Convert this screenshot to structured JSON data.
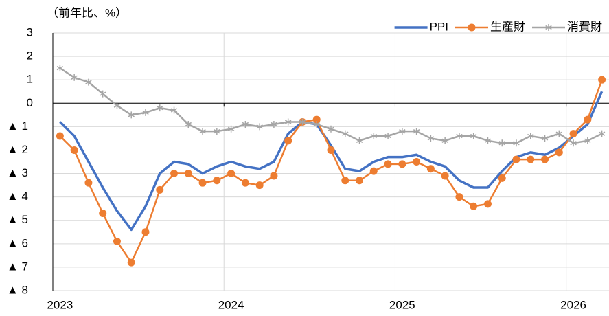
{
  "chart_data": {
    "type": "line",
    "y_axis_label": "（前年比、%）",
    "categories": [
      "2023",
      null,
      null,
      null,
      null,
      null,
      null,
      null,
      null,
      null,
      null,
      null,
      "2024",
      null,
      null,
      null,
      null,
      null,
      null,
      null,
      null,
      null,
      null,
      null,
      "2025",
      null,
      null,
      null,
      null,
      null,
      null,
      null,
      null,
      null,
      null,
      null,
      "2026",
      null,
      null
    ],
    "series": [
      {
        "name": "PPI",
        "color": "#4472c4",
        "marker": "none",
        "values": [
          -0.8,
          -1.4,
          -2.5,
          -3.6,
          -4.6,
          -5.4,
          -4.4,
          -3.0,
          -2.5,
          -2.6,
          -3.0,
          -2.7,
          -2.5,
          -2.7,
          -2.8,
          -2.5,
          -1.3,
          -0.8,
          -0.9,
          -1.8,
          -2.8,
          -2.9,
          -2.5,
          -2.3,
          -2.3,
          -2.2,
          -2.5,
          -2.7,
          -3.3,
          -3.6,
          -3.6,
          -2.9,
          -2.3,
          -2.1,
          -2.2,
          -1.9,
          -1.4,
          -0.9,
          0.5
        ]
      },
      {
        "name": "生産財",
        "color": "#ed7d31",
        "marker": "circle",
        "values": [
          -1.4,
          -2.0,
          -3.4,
          -4.7,
          -5.9,
          -6.8,
          -5.5,
          -3.7,
          -3.0,
          -3.0,
          -3.4,
          -3.3,
          -3.0,
          -3.4,
          -3.5,
          -3.1,
          -1.6,
          -0.8,
          -0.7,
          -2.0,
          -3.3,
          -3.3,
          -2.9,
          -2.6,
          -2.6,
          -2.5,
          -2.8,
          -3.1,
          -4.0,
          -4.4,
          -4.3,
          -3.2,
          -2.4,
          -2.4,
          -2.4,
          -2.1,
          -1.3,
          -0.7,
          1.0
        ]
      },
      {
        "name": "消費財",
        "color": "#a5a5a5",
        "marker": "star",
        "values": [
          1.5,
          1.1,
          0.9,
          0.4,
          -0.1,
          -0.5,
          -0.4,
          -0.2,
          -0.3,
          -0.9,
          -1.2,
          -1.2,
          -1.1,
          -0.9,
          -1.0,
          -0.9,
          -0.8,
          -0.8,
          -0.9,
          -1.1,
          -1.3,
          -1.6,
          -1.4,
          -1.4,
          -1.2,
          -1.2,
          -1.5,
          -1.6,
          -1.4,
          -1.4,
          -1.6,
          -1.7,
          -1.7,
          -1.4,
          -1.5,
          -1.3,
          -1.7,
          -1.6,
          -1.3
        ]
      }
    ],
    "ylim": [
      -8,
      3
    ],
    "yticks": [
      3,
      2,
      1,
      0,
      {
        "value": -1,
        "label": "▲ 1"
      },
      {
        "value": -2,
        "label": "▲ 2"
      },
      {
        "value": -3,
        "label": "▲ 3"
      },
      {
        "value": -4,
        "label": "▲ 4"
      },
      {
        "value": -5,
        "label": "▲ 5"
      },
      {
        "value": -6,
        "label": "▲ 6"
      },
      {
        "value": -7,
        "label": "▲ 7"
      },
      {
        "value": -8,
        "label": "▲ 8"
      }
    ],
    "grid": true,
    "legend": "top-right"
  }
}
